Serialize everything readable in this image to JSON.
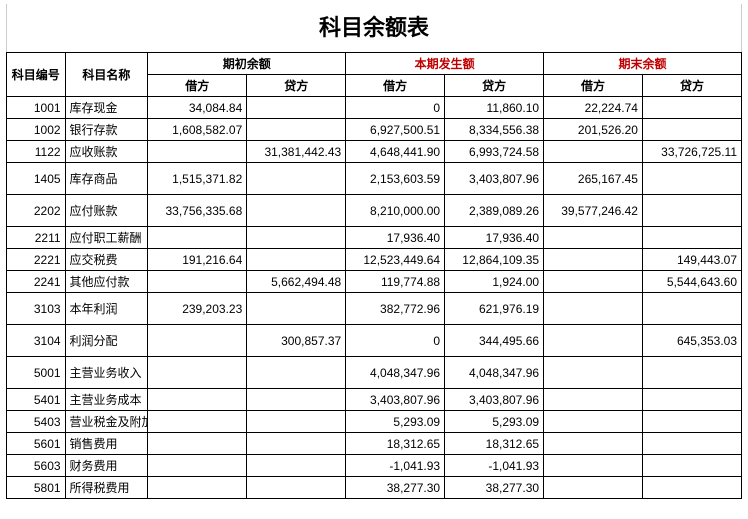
{
  "title": "科目余额表",
  "headers": {
    "code": "科目编号",
    "name": "科目名称",
    "opening": "期初余额",
    "period": "本期发生额",
    "closing": "期末余额",
    "debit": "借方",
    "credit": "贷方"
  },
  "style": {
    "title_fontsize": 22,
    "header_color_period": "#c00000",
    "header_color_closing": "#c00000",
    "border_color": "#000000",
    "background_color": "#ffffff",
    "cell_fontsize": 12
  },
  "rows": [
    {
      "code": "1001",
      "name": "库存现金",
      "od": "34,084.84",
      "oc": "",
      "pd": "0",
      "pc": "11,860.10",
      "cd": "22,224.74",
      "cc": ""
    },
    {
      "code": "1002",
      "name": "银行存款",
      "od": "1,608,582.07",
      "oc": "",
      "pd": "6,927,500.51",
      "pc": "8,334,556.38",
      "cd": "201,526.20",
      "cc": ""
    },
    {
      "code": "1122",
      "name": "应收账款",
      "od": "",
      "oc": "31,381,442.43",
      "pd": "4,648,441.90",
      "pc": "6,993,724.58",
      "cd": "",
      "cc": "33,726,725.11"
    },
    {
      "code": "1405",
      "name": "库存商品",
      "od": "1,515,371.82",
      "oc": "",
      "pd": "2,153,603.59",
      "pc": "3,403,807.96",
      "cd": "265,167.45",
      "cc": "",
      "tall": true
    },
    {
      "code": "2202",
      "name": "应付账款",
      "od": "33,756,335.68",
      "oc": "",
      "pd": "8,210,000.00",
      "pc": "2,389,089.26",
      "cd": "39,577,246.42",
      "cc": "",
      "tall": true
    },
    {
      "code": "2211",
      "name": "应付职工薪酬",
      "od": "",
      "oc": "",
      "pd": "17,936.40",
      "pc": "17,936.40",
      "cd": "",
      "cc": ""
    },
    {
      "code": "2221",
      "name": "应交税费",
      "od": "191,216.64",
      "oc": "",
      "pd": "12,523,449.64",
      "pc": "12,864,109.35",
      "cd": "",
      "cc": "149,443.07"
    },
    {
      "code": "2241",
      "name": "其他应付款",
      "od": "",
      "oc": "5,662,494.48",
      "pd": "119,774.88",
      "pc": "1,924.00",
      "cd": "",
      "cc": "5,544,643.60"
    },
    {
      "code": "3103",
      "name": "本年利润",
      "od": "239,203.23",
      "oc": "",
      "pd": "382,772.96",
      "pc": "621,976.19",
      "cd": "",
      "cc": "",
      "tall": true
    },
    {
      "code": "3104",
      "name": "利润分配",
      "od": "",
      "oc": "300,857.37",
      "pd": "0",
      "pc": "344,495.66",
      "cd": "",
      "cc": "645,353.03",
      "tall": true
    },
    {
      "code": "5001",
      "name": "主营业务收入",
      "od": "",
      "oc": "",
      "pd": "4,048,347.96",
      "pc": "4,048,347.96",
      "cd": "",
      "cc": "",
      "tall": true
    },
    {
      "code": "5401",
      "name": "主营业务成本",
      "od": "",
      "oc": "",
      "pd": "3,403,807.96",
      "pc": "3,403,807.96",
      "cd": "",
      "cc": ""
    },
    {
      "code": "5403",
      "name": "营业税金及附加",
      "od": "",
      "oc": "",
      "pd": "5,293.09",
      "pc": "5,293.09",
      "cd": "",
      "cc": ""
    },
    {
      "code": "5601",
      "name": "销售费用",
      "od": "",
      "oc": "",
      "pd": "18,312.65",
      "pc": "18,312.65",
      "cd": "",
      "cc": ""
    },
    {
      "code": "5603",
      "name": "财务费用",
      "od": "",
      "oc": "",
      "pd": "-1,041.93",
      "pc": "-1,041.93",
      "cd": "",
      "cc": ""
    },
    {
      "code": "5801",
      "name": "所得税费用",
      "od": "",
      "oc": "",
      "pd": "38,277.30",
      "pc": "38,277.30",
      "cd": "",
      "cc": ""
    }
  ]
}
